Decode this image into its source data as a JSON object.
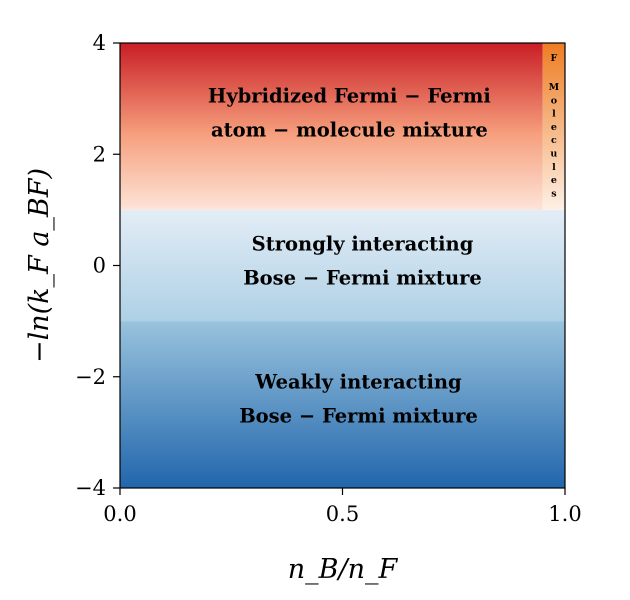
{
  "chart_data": {
    "type": "heatmap",
    "xlabel": "n_B/n_F",
    "ylabel": "−ln(k_F a_BF)",
    "xlim": [
      0.0,
      1.0
    ],
    "ylim": [
      -4,
      4
    ],
    "xticks": [
      "0.0",
      "0.5",
      "1.0"
    ],
    "yticks": [
      "−4",
      "−2",
      "0",
      "2",
      "4"
    ],
    "regions": [
      {
        "y_range": [
          1,
          4
        ],
        "x_range": [
          0.0,
          0.95
        ],
        "lines": [
          "Hybridized Fermi − Fermi",
          "atom − molecule mixture"
        ],
        "colors": [
          "#c91e25",
          "#fde4d8"
        ]
      },
      {
        "y_range": [
          -1,
          1
        ],
        "x_range": [
          0.0,
          1.0
        ],
        "lines": [
          "Strongly interacting",
          "Bose − Fermi mixture"
        ],
        "colors": [
          "#aed0e5",
          "#e3edf6"
        ]
      },
      {
        "y_range": [
          -4,
          -1
        ],
        "x_range": [
          0.0,
          1.0
        ],
        "lines": [
          "Weakly interacting",
          "Bose − Fermi mixture"
        ],
        "colors": [
          "#2166ac",
          "#99c3dd"
        ]
      },
      {
        "y_range": [
          1,
          4
        ],
        "x_range": [
          0.95,
          1.0
        ],
        "label_top": "F",
        "label_vertical": [
          "M",
          "o",
          "l",
          "e",
          "c",
          "u",
          "l",
          "e",
          "s"
        ],
        "colors": [
          "#ee7d22",
          "#fef0e6"
        ]
      }
    ]
  }
}
